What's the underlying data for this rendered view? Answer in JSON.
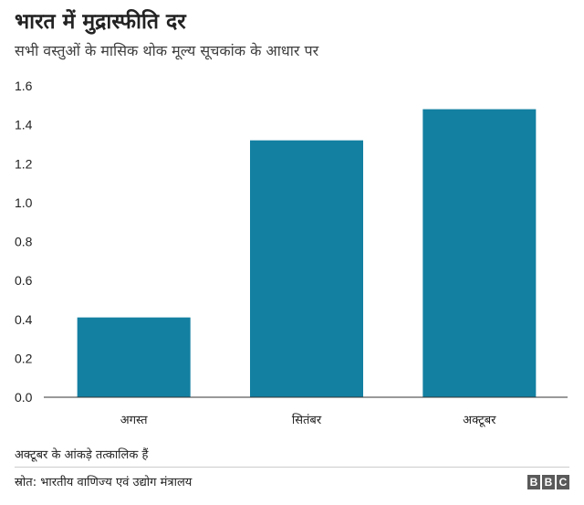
{
  "header": {
    "title": "भारत में मुद्रास्फीति दर",
    "subtitle": "सभी वस्तुओं के मासिक थोक मूल्य सूचकांक के आधार पर"
  },
  "chart_data": {
    "type": "bar",
    "title": "भारत में मुद्रास्फीति दर",
    "subtitle": "सभी वस्तुओं के मासिक थोक मूल्य सूचकांक के आधार पर",
    "categories": [
      "अगस्त",
      "सितंबर",
      "अक्टूबर"
    ],
    "values": [
      0.41,
      1.32,
      1.48
    ],
    "ylim": [
      0,
      1.6
    ],
    "yticks": [
      "0.0",
      "0.2",
      "0.4",
      "0.6",
      "0.8",
      "1.0",
      "1.2",
      "1.4",
      "1.6"
    ],
    "grid": false,
    "bar_color": "#1380a1"
  },
  "footer": {
    "note": "अक्टूबर के आंकड़े तत्कालिक हैं",
    "source": "स्रोत: भारतीय वाणिज्य एवं उद्योग मंत्रालय",
    "logo_letters": [
      "B",
      "B",
      "C"
    ]
  }
}
